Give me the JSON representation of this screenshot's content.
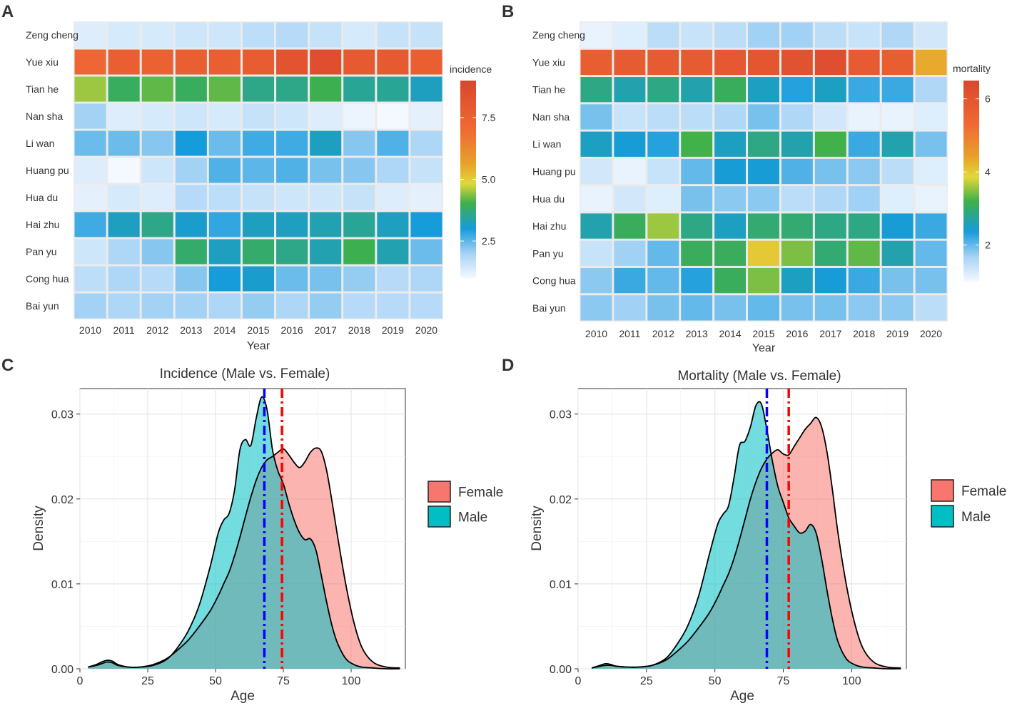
{
  "chart_data": [
    {
      "panel": "A",
      "type": "heatmap",
      "xlabel": "Year",
      "ylabel": "",
      "x": [
        "2010",
        "2011",
        "2012",
        "2013",
        "2014",
        "2015",
        "2016",
        "2017",
        "2018",
        "2019",
        "2020"
      ],
      "y": [
        "Zeng cheng",
        "Yue xiu",
        "Tian he",
        "Nan sha",
        "Li wan",
        "Huang pu",
        "Hua du",
        "Hai zhu",
        "Pan yu",
        "Cong hua",
        "Bai yun"
      ],
      "values": [
        [
          1.3,
          1.4,
          1.4,
          1.5,
          1.5,
          1.7,
          1.8,
          1.6,
          1.4,
          1.6,
          1.6
        ],
        [
          7.2,
          7.6,
          7.5,
          7.6,
          7.6,
          7.8,
          8.2,
          8.5,
          7.9,
          7.9,
          7.6
        ],
        [
          4.5,
          3.9,
          4.2,
          3.9,
          4.2,
          3.6,
          3.6,
          4.0,
          3.5,
          3.5,
          3.2
        ],
        [
          2.0,
          1.3,
          1.4,
          1.5,
          1.4,
          1.6,
          1.5,
          1.3,
          1.1,
          1.0,
          1.2
        ],
        [
          2.4,
          2.4,
          2.2,
          3.0,
          2.4,
          2.7,
          2.7,
          3.2,
          2.2,
          2.6,
          1.9
        ],
        [
          1.3,
          1.0,
          1.5,
          2.0,
          2.6,
          2.5,
          2.6,
          2.3,
          2.2,
          1.9,
          1.6
        ],
        [
          1.2,
          1.4,
          1.3,
          1.8,
          1.7,
          1.6,
          1.5,
          1.5,
          1.6,
          1.3,
          1.2
        ],
        [
          2.7,
          3.2,
          3.6,
          3.1,
          2.8,
          3.2,
          3.2,
          3.3,
          3.5,
          3.2,
          3.0
        ],
        [
          1.5,
          1.9,
          2.2,
          3.8,
          3.2,
          3.8,
          3.6,
          3.3,
          4.0,
          3.3,
          2.4
        ],
        [
          1.7,
          1.9,
          1.8,
          2.2,
          3.0,
          3.1,
          2.4,
          2.3,
          2.1,
          1.8,
          1.9
        ],
        [
          2.0,
          1.9,
          2.0,
          2.0,
          1.9,
          2.1,
          1.9,
          2.1,
          1.8,
          1.8,
          1.8
        ]
      ],
      "legend": {
        "title": "incidence",
        "range": [
          1,
          9
        ],
        "ticks": [
          "2.5",
          "5.0",
          "7.5"
        ]
      }
    },
    {
      "panel": "B",
      "type": "heatmap",
      "xlabel": "Year",
      "ylabel": "",
      "x": [
        "2010",
        "2011",
        "2012",
        "2013",
        "2014",
        "2015",
        "2016",
        "2017",
        "2018",
        "2019",
        "2020"
      ],
      "y": [
        "Zeng cheng",
        "Yue xiu",
        "Tian he",
        "Nan sha",
        "Li wan",
        "Huang pu",
        "Hua du",
        "Hai zhu",
        "Pan yu",
        "Cong hua",
        "Bai yun"
      ],
      "values": [
        [
          1.1,
          1.2,
          1.5,
          1.4,
          1.5,
          1.7,
          1.7,
          1.5,
          1.4,
          1.6,
          1.3
        ],
        [
          5.6,
          5.7,
          5.7,
          5.7,
          5.8,
          5.9,
          6.0,
          6.2,
          5.7,
          5.6,
          4.1
        ],
        [
          2.8,
          2.6,
          2.8,
          2.6,
          3.0,
          2.5,
          2.3,
          2.5,
          2.2,
          2.2,
          1.6
        ],
        [
          1.9,
          1.4,
          1.5,
          1.5,
          1.6,
          1.9,
          1.6,
          1.3,
          1.1,
          1.1,
          1.2
        ],
        [
          2.5,
          2.4,
          2.3,
          3.1,
          2.5,
          2.8,
          2.6,
          3.1,
          2.2,
          2.6,
          1.9
        ],
        [
          1.3,
          1.1,
          1.4,
          2.0,
          2.4,
          2.4,
          2.1,
          1.9,
          1.8,
          1.5,
          1.2
        ],
        [
          1.1,
          1.3,
          1.2,
          1.9,
          1.8,
          1.8,
          1.5,
          1.6,
          1.7,
          1.2,
          1.1
        ],
        [
          2.6,
          3.0,
          3.4,
          2.8,
          2.5,
          2.9,
          2.9,
          2.8,
          2.8,
          2.4,
          2.2
        ],
        [
          1.4,
          1.7,
          2.0,
          3.0,
          3.0,
          3.8,
          3.3,
          2.9,
          3.2,
          2.6,
          2.0
        ],
        [
          1.8,
          2.2,
          2.0,
          2.3,
          3.0,
          3.3,
          2.5,
          2.4,
          2.2,
          1.9,
          1.9
        ],
        [
          1.8,
          1.7,
          1.9,
          2.0,
          1.9,
          2.0,
          1.9,
          1.9,
          1.8,
          1.8,
          1.5
        ]
      ],
      "legend": {
        "title": "mortality",
        "range": [
          1,
          6.5
        ],
        "ticks": [
          "2",
          "4",
          "6"
        ]
      }
    },
    {
      "panel": "C",
      "type": "area",
      "title": "Incidence (Male vs. Female)",
      "xlabel": "Age",
      "ylabel": "Density",
      "xlim": [
        0,
        120
      ],
      "ylim": [
        0,
        0.033
      ],
      "xticks": [
        "0",
        "25",
        "50",
        "75",
        "100"
      ],
      "yticks": [
        "0.00",
        "0.01",
        "0.02",
        "0.03"
      ],
      "x": [
        3,
        6,
        8,
        10,
        12,
        14,
        18,
        22,
        27,
        32,
        36,
        40,
        44,
        48,
        51,
        53,
        55,
        57,
        59,
        61,
        63,
        65,
        67,
        69,
        71,
        73,
        75,
        77,
        79,
        81,
        83,
        85,
        87,
        89,
        91,
        93,
        95,
        98,
        101,
        104,
        108,
        113,
        118
      ],
      "series": [
        {
          "name": "Female",
          "color": "#F8766D",
          "values": [
            0.0002,
            0.0004,
            0.0006,
            0.0008,
            0.0007,
            0.0004,
            0.0002,
            0.0002,
            0.0005,
            0.0012,
            0.0022,
            0.0034,
            0.005,
            0.0068,
            0.0086,
            0.01,
            0.0114,
            0.0133,
            0.0155,
            0.0179,
            0.0202,
            0.0222,
            0.0237,
            0.0246,
            0.025,
            0.0255,
            0.0259,
            0.0252,
            0.0243,
            0.0237,
            0.0244,
            0.0255,
            0.026,
            0.0256,
            0.0233,
            0.0196,
            0.0156,
            0.01,
            0.0055,
            0.0025,
            0.0008,
            0.0002,
            0.0001
          ]
        },
        {
          "name": "Male",
          "color": "#00BFC4",
          "values": [
            0.0002,
            0.0005,
            0.0008,
            0.001,
            0.0009,
            0.0005,
            0.0002,
            0.0002,
            0.0004,
            0.0011,
            0.0025,
            0.0045,
            0.0075,
            0.012,
            0.016,
            0.0175,
            0.0183,
            0.021,
            0.0258,
            0.027,
            0.0263,
            0.0295,
            0.032,
            0.0305,
            0.0258,
            0.0233,
            0.0218,
            0.0195,
            0.0175,
            0.016,
            0.0152,
            0.0153,
            0.014,
            0.011,
            0.0078,
            0.005,
            0.003,
            0.0012,
            0.0005,
            0.0002,
            0.0001,
            0.0,
            0.0
          ]
        }
      ],
      "vlines": [
        {
          "label": "Male mean",
          "x": 68.0,
          "color": "#0000FF"
        },
        {
          "label": "Female mean",
          "x": 74.5,
          "color": "#FF0000"
        }
      ],
      "legend": {
        "position": "right",
        "items": [
          "Female",
          "Male"
        ]
      }
    },
    {
      "panel": "D",
      "type": "area",
      "title": "Mortality (Male vs. Female)",
      "xlabel": "Age",
      "ylabel": "Density",
      "xlim": [
        0,
        120
      ],
      "ylim": [
        0,
        0.033
      ],
      "xticks": [
        "0",
        "25",
        "50",
        "75",
        "100"
      ],
      "yticks": [
        "0.00",
        "0.01",
        "0.02",
        "0.03"
      ],
      "x": [
        5,
        8,
        10,
        12,
        14,
        18,
        22,
        27,
        32,
        36,
        40,
        44,
        48,
        51,
        53,
        55,
        57,
        59,
        61,
        63,
        65,
        67,
        69,
        71,
        73,
        75,
        77,
        79,
        81,
        83,
        85,
        87,
        89,
        91,
        93,
        95,
        98,
        101,
        104,
        108,
        113,
        118
      ],
      "series": [
        {
          "name": "Female",
          "color": "#F8766D",
          "values": [
            0.0001,
            0.0003,
            0.0004,
            0.0004,
            0.0003,
            0.0002,
            0.0002,
            0.0004,
            0.001,
            0.002,
            0.0032,
            0.0048,
            0.0066,
            0.0084,
            0.0098,
            0.0112,
            0.013,
            0.0152,
            0.0176,
            0.02,
            0.022,
            0.0236,
            0.0247,
            0.0254,
            0.0258,
            0.0253,
            0.0252,
            0.0262,
            0.0272,
            0.0282,
            0.0289,
            0.0296,
            0.0285,
            0.0255,
            0.021,
            0.016,
            0.01,
            0.0055,
            0.0025,
            0.0008,
            0.0002,
            0.0001
          ]
        },
        {
          "name": "Male",
          "color": "#00BFC4",
          "values": [
            0.0001,
            0.0004,
            0.0006,
            0.0005,
            0.0003,
            0.0002,
            0.0002,
            0.0004,
            0.0012,
            0.0028,
            0.005,
            0.0085,
            0.0135,
            0.017,
            0.0182,
            0.0192,
            0.0225,
            0.0263,
            0.0268,
            0.0285,
            0.031,
            0.0312,
            0.0282,
            0.0245,
            0.0215,
            0.0196,
            0.0178,
            0.0168,
            0.016,
            0.0162,
            0.017,
            0.016,
            0.013,
            0.0092,
            0.0058,
            0.0032,
            0.0012,
            0.0005,
            0.0002,
            0.0001,
            0.0,
            0.0
          ]
        }
      ],
      "vlines": [
        {
          "label": "Male mean",
          "x": 69.0,
          "color": "#0000FF"
        },
        {
          "label": "Female mean",
          "x": 77.0,
          "color": "#FF0000"
        }
      ],
      "legend": {
        "position": "right",
        "items": [
          "Female",
          "Male"
        ]
      }
    }
  ]
}
